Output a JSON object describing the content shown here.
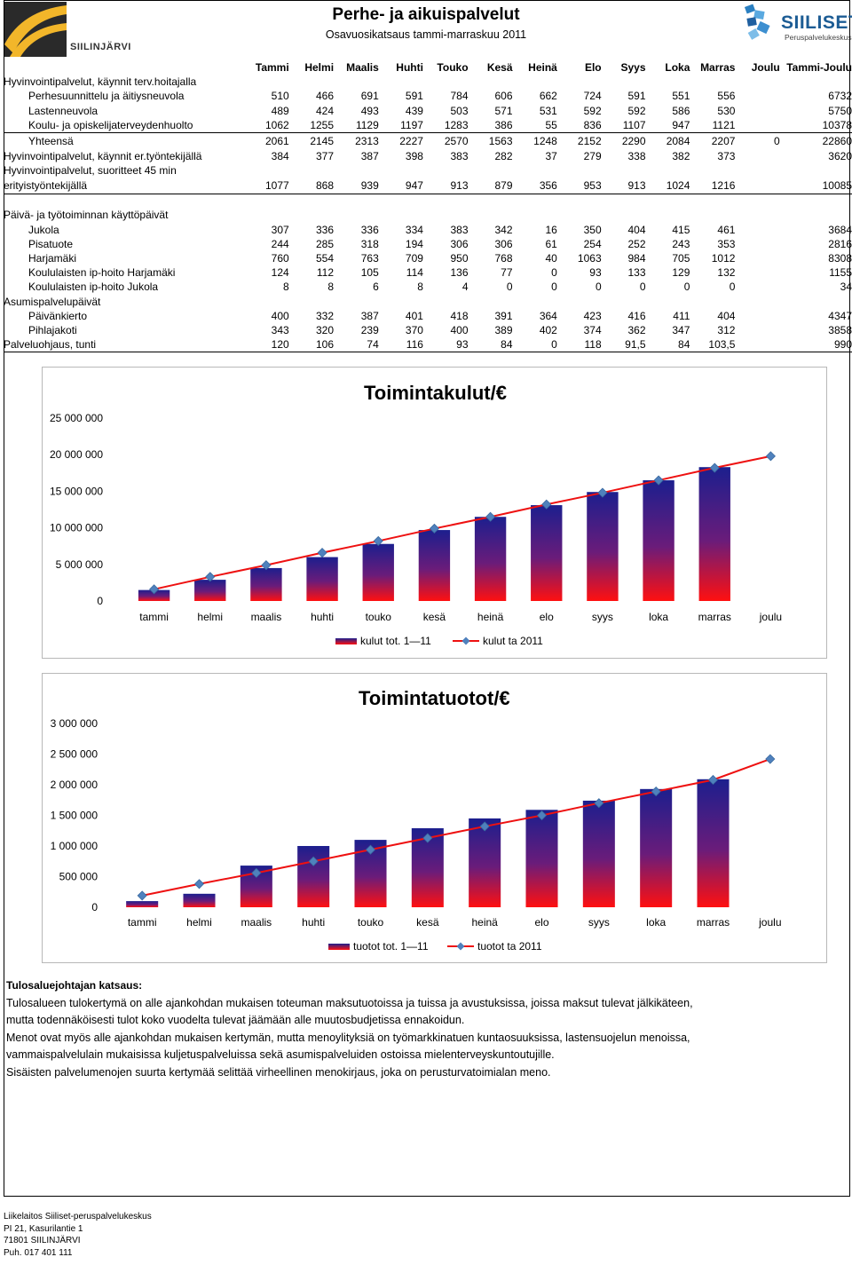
{
  "header": {
    "title": "Perhe- ja aikuispalvelut",
    "subtitle": "Osavuosikatsaus tammi-marraskuu 2011",
    "logo_left_text": "SIILINJÄRVI",
    "logo_right_text": "SIILISET",
    "logo_right_sub": "Peruspalvelukeskus"
  },
  "table": {
    "columns": [
      "Tammi",
      "Helmi",
      "Maalis",
      "Huhti",
      "Touko",
      "Kesä",
      "Heinä",
      "Elo",
      "Syys",
      "Loka",
      "Marras",
      "Joulu",
      "Tammi-Joulu"
    ],
    "section1": "Hyvinvointipalvelut, käynnit terv.hoitajalla",
    "rows1": [
      {
        "label": "Perhesuunnittelu ja äitiysneuvola",
        "values": [
          "510",
          "466",
          "691",
          "591",
          "784",
          "606",
          "662",
          "724",
          "591",
          "551",
          "556",
          "",
          "6732"
        ]
      },
      {
        "label": "Lastenneuvola",
        "values": [
          "489",
          "424",
          "493",
          "439",
          "503",
          "571",
          "531",
          "592",
          "592",
          "586",
          "530",
          "",
          "5750"
        ]
      },
      {
        "label": "Koulu- ja opiskelijaterveydenhuolto",
        "values": [
          "1062",
          "1255",
          "1129",
          "1197",
          "1283",
          "386",
          "55",
          "836",
          "1107",
          "947",
          "1121",
          "",
          "10378"
        ]
      }
    ],
    "total_row": {
      "label": "Yhteensä",
      "values": [
        "2061",
        "2145",
        "2313",
        "2227",
        "2570",
        "1563",
        "1248",
        "2152",
        "2290",
        "2084",
        "2207",
        "0",
        "22860"
      ]
    },
    "row_er": {
      "label": "Hyvinvointipalvelut, käynnit er.työntekijällä",
      "values": [
        "384",
        "377",
        "387",
        "398",
        "383",
        "282",
        "37",
        "279",
        "338",
        "382",
        "373",
        "",
        "3620"
      ]
    },
    "section_suor": "Hyvinvointipalvelut, suoritteet 45 min",
    "row_suor": {
      "label": "erityistyöntekijällä",
      "values": [
        "1077",
        "868",
        "939",
        "947",
        "913",
        "879",
        "356",
        "953",
        "913",
        "1024",
        "1216",
        "",
        "10085"
      ]
    },
    "section2": "Päivä- ja työtoiminnan käyttöpäivät",
    "rows2": [
      {
        "label": "Jukola",
        "values": [
          "307",
          "336",
          "336",
          "334",
          "383",
          "342",
          "16",
          "350",
          "404",
          "415",
          "461",
          "",
          "3684"
        ]
      },
      {
        "label": "Pisatuote",
        "values": [
          "244",
          "285",
          "318",
          "194",
          "306",
          "306",
          "61",
          "254",
          "252",
          "243",
          "353",
          "",
          "2816"
        ]
      },
      {
        "label": "Harjamäki",
        "values": [
          "760",
          "554",
          "763",
          "709",
          "950",
          "768",
          "40",
          "1063",
          "984",
          "705",
          "1012",
          "",
          "8308"
        ]
      },
      {
        "label": "Koululaisten ip-hoito Harjamäki",
        "values": [
          "124",
          "112",
          "105",
          "114",
          "136",
          "77",
          "0",
          "93",
          "133",
          "129",
          "132",
          "",
          "1155"
        ]
      },
      {
        "label": "Koululaisten ip-hoito Jukola",
        "values": [
          "8",
          "8",
          "6",
          "8",
          "4",
          "0",
          "0",
          "0",
          "0",
          "0",
          "0",
          "",
          "34"
        ]
      }
    ],
    "section3": "Asumispalvelupäivät",
    "rows3": [
      {
        "label": "Päivänkierto",
        "values": [
          "400",
          "332",
          "387",
          "401",
          "418",
          "391",
          "364",
          "423",
          "416",
          "411",
          "404",
          "",
          "4347"
        ]
      },
      {
        "label": "Pihlajakoti",
        "values": [
          "343",
          "320",
          "239",
          "370",
          "400",
          "389",
          "402",
          "374",
          "362",
          "347",
          "312",
          "",
          "3858"
        ]
      }
    ],
    "row_palv": {
      "label": "Palveluohjaus, tunti",
      "values": [
        "120",
        "106",
        "74",
        "116",
        "93",
        "84",
        "0",
        "118",
        "91,5",
        "84",
        "103,5",
        "",
        "990"
      ]
    }
  },
  "chart_data": [
    {
      "type": "bar",
      "title": "Toimintakulut/€",
      "categories": [
        "tammi",
        "helmi",
        "maalis",
        "huhti",
        "touko",
        "kesä",
        "heinä",
        "elo",
        "syys",
        "loka",
        "marras",
        "joulu"
      ],
      "ylim": [
        0,
        25000000
      ],
      "yticks": [
        "0",
        "5 000 000",
        "10 000 000",
        "15 000 000",
        "20 000 000",
        "25 000 000"
      ],
      "series": [
        {
          "name": "kulut tot. 1—11",
          "kind": "bar",
          "values": [
            1500000,
            2900000,
            4500000,
            6000000,
            7800000,
            9700000,
            11500000,
            13100000,
            14900000,
            16500000,
            18300000,
            null
          ]
        },
        {
          "name": "kulut ta 2011",
          "kind": "line",
          "values": [
            1600000,
            3300000,
            4900000,
            6600000,
            8200000,
            9900000,
            11500000,
            13200000,
            14800000,
            16500000,
            18200000,
            19800000
          ]
        }
      ],
      "legend": "bottom",
      "colors": {
        "bar_top": "#1c1f8e",
        "bar_mid": "#6a1c7a",
        "bar_bottom": "#ff1010",
        "line": "#4f81bd"
      }
    },
    {
      "type": "bar",
      "title": "Toimintatuotot/€",
      "categories": [
        "tammi",
        "helmi",
        "maalis",
        "huhti",
        "touko",
        "kesä",
        "heinä",
        "elo",
        "syys",
        "loka",
        "marras",
        "joulu"
      ],
      "ylim": [
        0,
        3000000
      ],
      "yticks": [
        "0",
        "500 000",
        "1 000 000",
        "1 500 000",
        "2 000 000",
        "2 500 000",
        "3 000 000"
      ],
      "series": [
        {
          "name": "tuotot tot. 1—11",
          "kind": "bar",
          "values": [
            100000,
            220000,
            680000,
            1000000,
            1100000,
            1290000,
            1450000,
            1590000,
            1740000,
            1930000,
            2090000,
            null
          ]
        },
        {
          "name": "tuotot ta 2011",
          "kind": "line",
          "values": [
            190000,
            380000,
            560000,
            750000,
            940000,
            1130000,
            1320000,
            1500000,
            1700000,
            1890000,
            2080000,
            2420000
          ]
        }
      ],
      "legend": "bottom",
      "colors": {
        "bar_top": "#1c1f8e",
        "bar_mid": "#6a1c7a",
        "bar_bottom": "#ff1010",
        "line": "#4f81bd"
      }
    }
  ],
  "notes": {
    "heading": "Tulosaluejohtajan katsaus:",
    "lines": [
      "Tulosalueen tulokertymä on alle ajankohdan mukaisen toteuman maksutuotoissa ja tuissa ja avustuksissa, joissa maksut tulevat jälkikäteen,",
      "mutta todennäköisesti tulot koko vuodelta tulevat jäämään alle muutosbudjetissa ennakoidun.",
      "Menot ovat myös alle ajankohdan mukaisen kertymän, mutta menoylityksiä on työmarkkinatuen kuntaosuuksissa, lastensuojelun menoissa,",
      "vammaispalvelulain mukaisissa kuljetuspalveluissa sekä asumispalveluiden ostoissa mielenterveyskuntoutujille.",
      "Sisäisten palvelumenojen suurta kertymää selittää virheellinen menokirjaus, joka on perusturvatoimialan meno."
    ]
  },
  "footer": {
    "lines": [
      "Liikelaitos Siiliset-peruspalvelukeskus",
      "PI 21, Kasurilantie 1",
      "71801 SIILINJÄRVI",
      "Puh. 017 401 111"
    ]
  }
}
